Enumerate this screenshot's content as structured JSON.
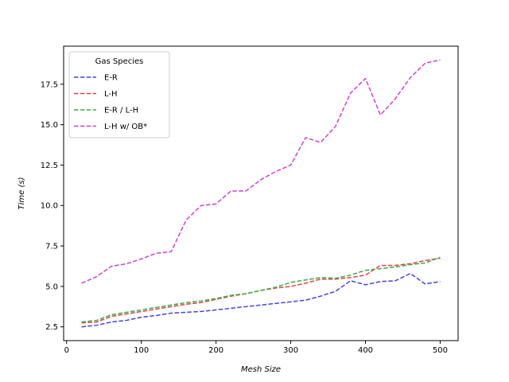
{
  "chart_data": {
    "type": "line",
    "title": "",
    "xlabel": "Mesh Size",
    "ylabel": "Time (s)",
    "xlim": [
      -4,
      524
    ],
    "ylim": [
      1.65,
      19.85
    ],
    "xticks": [
      0,
      100,
      200,
      300,
      400,
      500
    ],
    "yticks": [
      2.5,
      5.0,
      7.5,
      10.0,
      12.5,
      15.0,
      17.5
    ],
    "ytick_labels": [
      "2.5",
      "5.0",
      "7.5",
      "10.0",
      "12.5",
      "15.0",
      "17.5"
    ],
    "grid": false,
    "legend": {
      "title": "Gas Species",
      "position": "top-left"
    },
    "x": [
      20,
      40,
      60,
      80,
      100,
      120,
      140,
      160,
      180,
      200,
      220,
      240,
      260,
      280,
      300,
      320,
      340,
      360,
      380,
      400,
      420,
      440,
      460,
      480,
      500
    ],
    "series": [
      {
        "name": "E-R",
        "color": "#4444dd",
        "values": [
          2.5,
          2.6,
          2.8,
          2.9,
          3.1,
          3.2,
          3.35,
          3.4,
          3.45,
          3.55,
          3.65,
          3.75,
          3.85,
          3.95,
          4.05,
          4.15,
          4.4,
          4.7,
          5.35,
          5.1,
          5.3,
          5.35,
          5.8,
          5.15,
          5.3
        ]
      },
      {
        "name": "L-H",
        "color": "#dd4444",
        "values": [
          2.75,
          2.8,
          3.15,
          3.3,
          3.45,
          3.6,
          3.75,
          3.9,
          4.0,
          4.2,
          4.4,
          4.55,
          4.75,
          4.9,
          5.0,
          5.2,
          5.45,
          5.45,
          5.55,
          5.7,
          6.3,
          6.3,
          6.4,
          6.6,
          6.75
        ]
      },
      {
        "name": "E-R / L-H",
        "color": "#44aa44",
        "values": [
          2.8,
          2.9,
          3.25,
          3.4,
          3.55,
          3.7,
          3.85,
          4.0,
          4.1,
          4.25,
          4.45,
          4.55,
          4.75,
          4.95,
          5.25,
          5.4,
          5.55,
          5.5,
          5.7,
          6.0,
          6.1,
          6.2,
          6.35,
          6.45,
          6.8
        ]
      },
      {
        "name": "L-H w/ OB*",
        "color": "#cc44cc",
        "values": [
          5.2,
          5.6,
          6.25,
          6.4,
          6.7,
          7.05,
          7.15,
          9.1,
          10.0,
          10.1,
          10.9,
          10.9,
          11.6,
          12.1,
          12.5,
          14.2,
          13.9,
          14.9,
          16.95,
          17.85,
          15.6,
          16.6,
          17.9,
          18.8,
          19.0
        ]
      }
    ]
  }
}
